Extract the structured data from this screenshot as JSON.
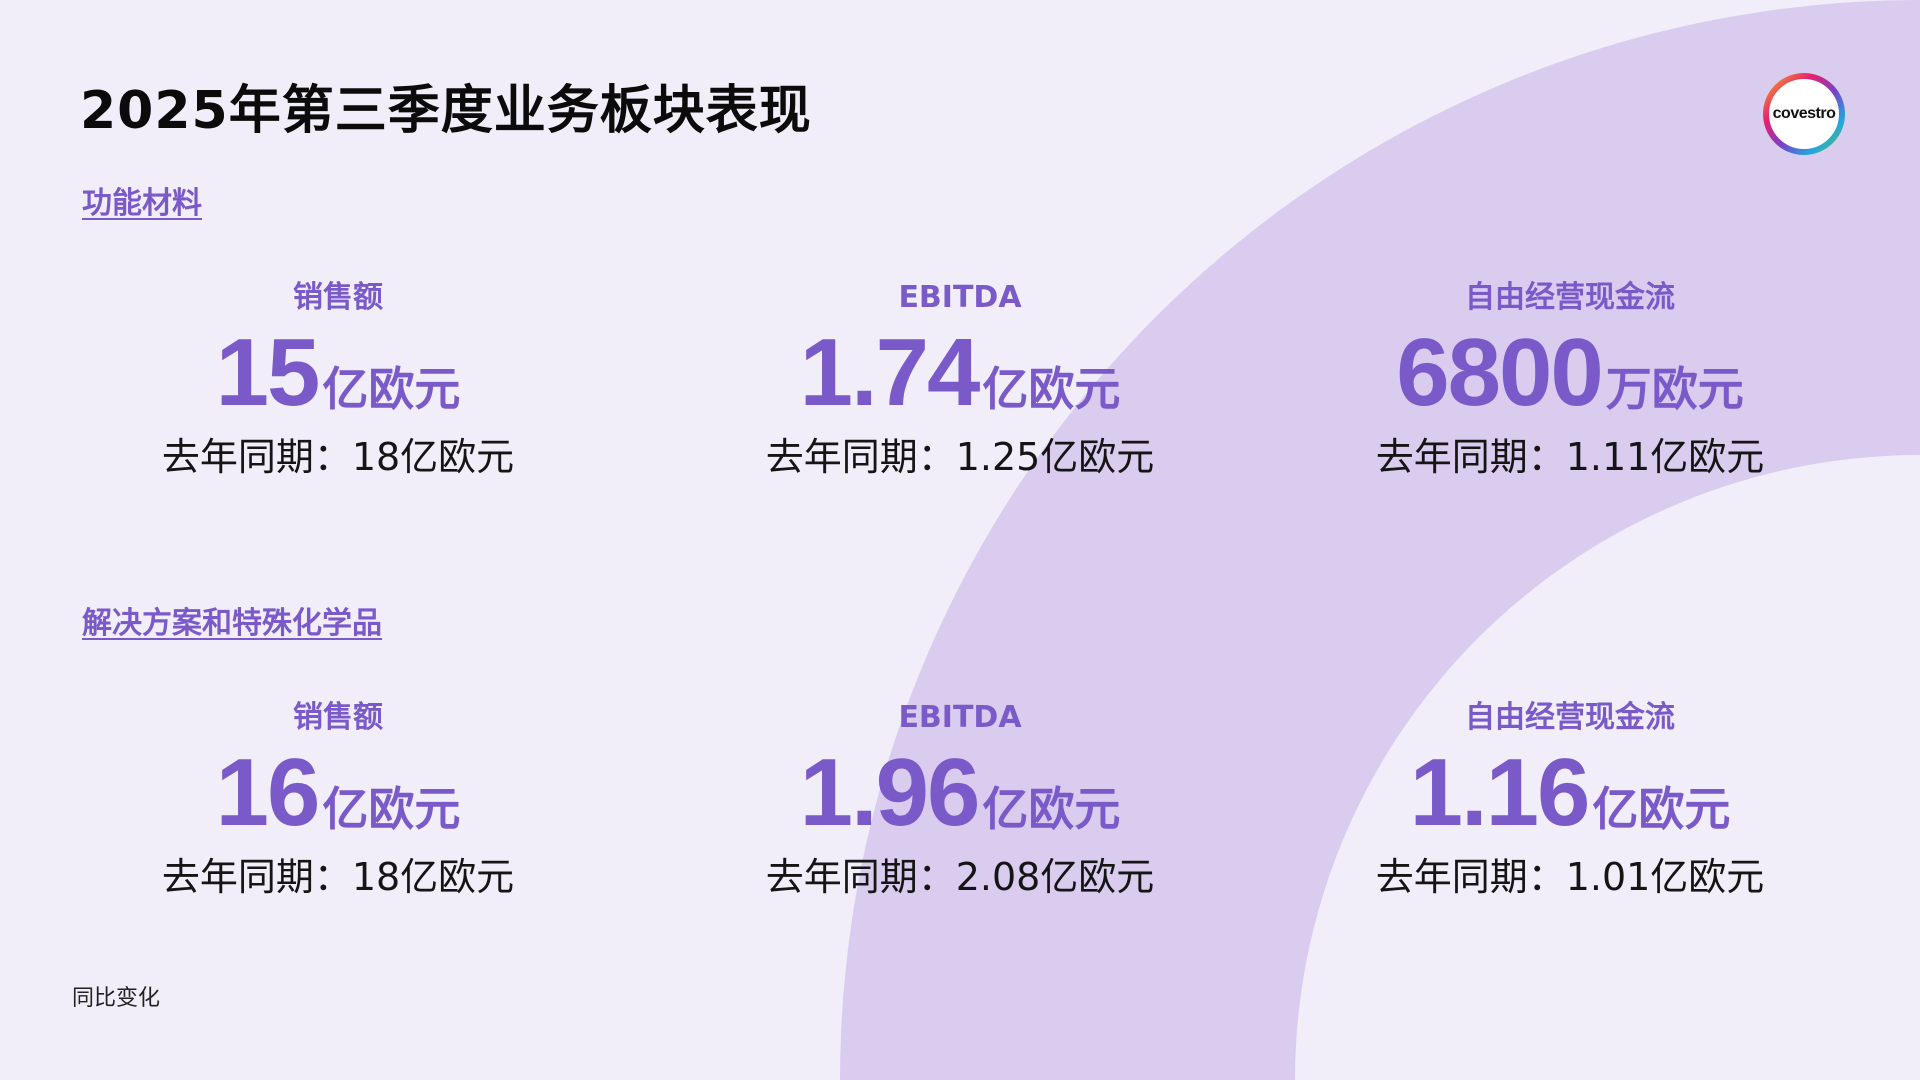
{
  "slide": {
    "title": "2025年第三季度业务板块表现",
    "footnote": "同比变化",
    "logo_text": "covestro",
    "colors": {
      "accent": "#7a5ac9",
      "background": "#f1eefa",
      "arc": "#d9ccef"
    }
  },
  "sections": [
    {
      "title": "功能材料",
      "metrics": [
        {
          "label": "销售额",
          "value": "15",
          "unit": "亿欧元",
          "prev": "去年同期：18亿欧元"
        },
        {
          "label": "EBITDA",
          "value": "1.74",
          "unit": "亿欧元",
          "prev": "去年同期：1.25亿欧元"
        },
        {
          "label": "自由经营现金流",
          "value": "6800",
          "unit": "万欧元",
          "prev": "去年同期：1.11亿欧元"
        }
      ]
    },
    {
      "title": "解决方案和特殊化学品",
      "metrics": [
        {
          "label": "销售额",
          "value": "16",
          "unit": "亿欧元",
          "prev": "去年同期：18亿欧元"
        },
        {
          "label": "EBITDA",
          "value": "1.96",
          "unit": "亿欧元",
          "prev": "去年同期：2.08亿欧元"
        },
        {
          "label": "自由经营现金流",
          "value": "1.16",
          "unit": "亿欧元",
          "prev": "去年同期：1.01亿欧元"
        }
      ]
    }
  ]
}
